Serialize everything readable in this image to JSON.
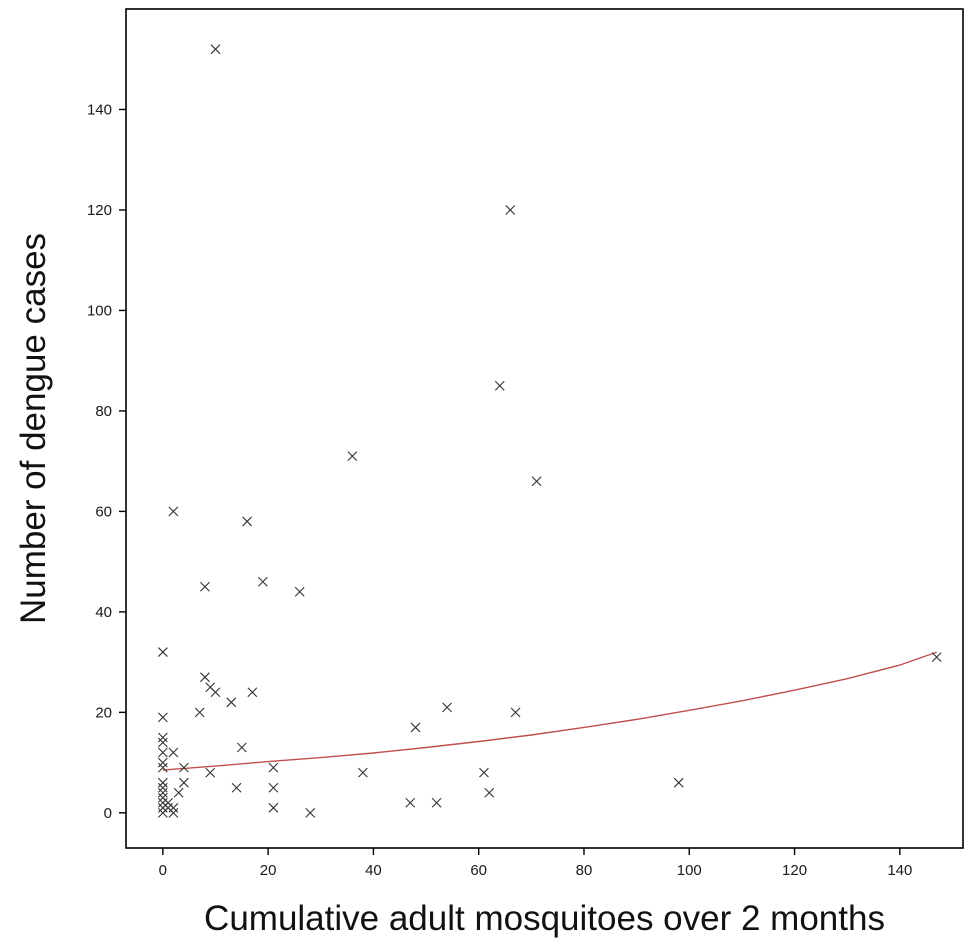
{
  "chart_data": {
    "type": "scatter",
    "xlabel": "Cumulative adult mosquitoes over 2 months",
    "ylabel": "Number of dengue cases",
    "xlim": [
      -7,
      152
    ],
    "ylim": [
      -7,
      160
    ],
    "x_ticks": [
      0,
      20,
      40,
      60,
      80,
      100,
      120,
      140
    ],
    "y_ticks": [
      0,
      20,
      40,
      60,
      80,
      100,
      120,
      140
    ],
    "grid": false,
    "marker": "x",
    "colors": {
      "points": "#333333",
      "trend": "#c0504d",
      "axis": "#000000"
    },
    "points": [
      {
        "x": 10,
        "y": 152
      },
      {
        "x": 66,
        "y": 120
      },
      {
        "x": 64,
        "y": 85
      },
      {
        "x": 36,
        "y": 71
      },
      {
        "x": 71,
        "y": 66
      },
      {
        "x": 2,
        "y": 60
      },
      {
        "x": 16,
        "y": 58
      },
      {
        "x": 19,
        "y": 46
      },
      {
        "x": 8,
        "y": 45
      },
      {
        "x": 26,
        "y": 44
      },
      {
        "x": 0,
        "y": 32
      },
      {
        "x": 147,
        "y": 31
      },
      {
        "x": 8,
        "y": 27
      },
      {
        "x": 9,
        "y": 25
      },
      {
        "x": 10,
        "y": 24
      },
      {
        "x": 17,
        "y": 24
      },
      {
        "x": 13,
        "y": 22
      },
      {
        "x": 54,
        "y": 21
      },
      {
        "x": 7,
        "y": 20
      },
      {
        "x": 67,
        "y": 20
      },
      {
        "x": 0,
        "y": 19
      },
      {
        "x": 48,
        "y": 17
      },
      {
        "x": 0,
        "y": 15
      },
      {
        "x": 0,
        "y": 14
      },
      {
        "x": 15,
        "y": 13
      },
      {
        "x": 0,
        "y": 12
      },
      {
        "x": 2,
        "y": 12
      },
      {
        "x": 0,
        "y": 10
      },
      {
        "x": 0,
        "y": 9
      },
      {
        "x": 4,
        "y": 9
      },
      {
        "x": 21,
        "y": 9
      },
      {
        "x": 9,
        "y": 8
      },
      {
        "x": 38,
        "y": 8
      },
      {
        "x": 61,
        "y": 8
      },
      {
        "x": 0,
        "y": 6
      },
      {
        "x": 4,
        "y": 6
      },
      {
        "x": 98,
        "y": 6
      },
      {
        "x": 0,
        "y": 5
      },
      {
        "x": 14,
        "y": 5
      },
      {
        "x": 21,
        "y": 5
      },
      {
        "x": 0,
        "y": 4
      },
      {
        "x": 3,
        "y": 4
      },
      {
        "x": 62,
        "y": 4
      },
      {
        "x": 0,
        "y": 3
      },
      {
        "x": 0,
        "y": 2
      },
      {
        "x": 1,
        "y": 2
      },
      {
        "x": 47,
        "y": 2
      },
      {
        "x": 52,
        "y": 2
      },
      {
        "x": 0,
        "y": 1
      },
      {
        "x": 1,
        "y": 1
      },
      {
        "x": 2,
        "y": 1
      },
      {
        "x": 21,
        "y": 1
      },
      {
        "x": 0,
        "y": 0
      },
      {
        "x": 2,
        "y": 0
      },
      {
        "x": 28,
        "y": 0
      }
    ],
    "trend_line": {
      "type": "exponential",
      "x": [
        0,
        10,
        20,
        30,
        40,
        50,
        60,
        70,
        80,
        90,
        100,
        110,
        120,
        130,
        140,
        147
      ],
      "y": [
        8.5,
        9.3,
        10.2,
        11.0,
        11.9,
        13.0,
        14.2,
        15.5,
        17.0,
        18.6,
        20.4,
        22.3,
        24.4,
        26.7,
        29.4,
        32.0
      ]
    }
  }
}
